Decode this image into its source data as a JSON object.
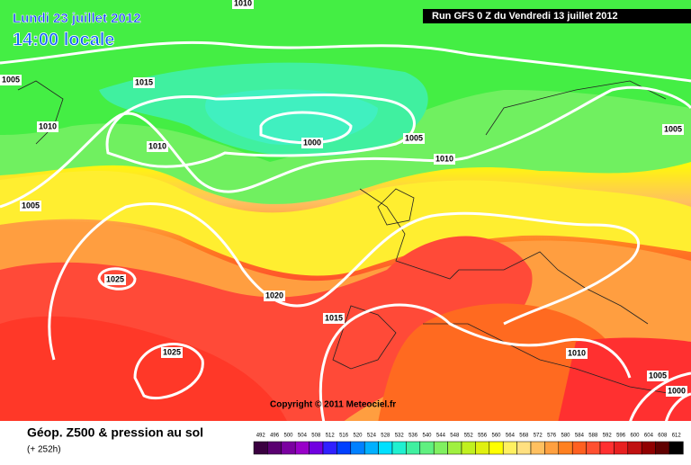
{
  "header": {
    "date": "Lundi 23 juillet 2012",
    "time": "14:00 locale",
    "run": "Run GFS 0 Z du Vendredi 13 juillet 2012"
  },
  "copyright": "Copyright © 2011 Meteociel.fr",
  "footer": {
    "title": "Géop. Z500 & pression au sol",
    "lead": "(+ 252h)"
  },
  "isobar_labels": [
    "1010",
    "1005",
    "1015",
    "1010",
    "1010",
    "1000",
    "1005",
    "1010",
    "1005",
    "1005",
    "1025",
    "1020",
    "1015",
    "1025",
    "1010",
    "1005",
    "1000"
  ],
  "color_scale": {
    "labels": [
      "492",
      "496",
      "500",
      "504",
      "508",
      "512",
      "516",
      "520",
      "524",
      "528",
      "532",
      "536",
      "540",
      "544",
      "548",
      "552",
      "556",
      "560",
      "564",
      "568",
      "572",
      "576",
      "580",
      "584",
      "588",
      "592",
      "596",
      "600",
      "604",
      "608",
      "612"
    ],
    "colors": [
      "#3a0040",
      "#5a0070",
      "#7a00a0",
      "#9800c8",
      "#7000e0",
      "#3020ff",
      "#0040ff",
      "#0080ff",
      "#00b0ff",
      "#00e0ff",
      "#20f0d0",
      "#40f0a0",
      "#60f080",
      "#80f060",
      "#a0f040",
      "#c0f020",
      "#e0f010",
      "#ffff00",
      "#fff060",
      "#ffe080",
      "#ffc060",
      "#ffa040",
      "#ff8020",
      "#ff6020",
      "#ff5030",
      "#ff3030",
      "#e82020",
      "#c01010",
      "#900000",
      "#600000",
      "#000000"
    ]
  }
}
